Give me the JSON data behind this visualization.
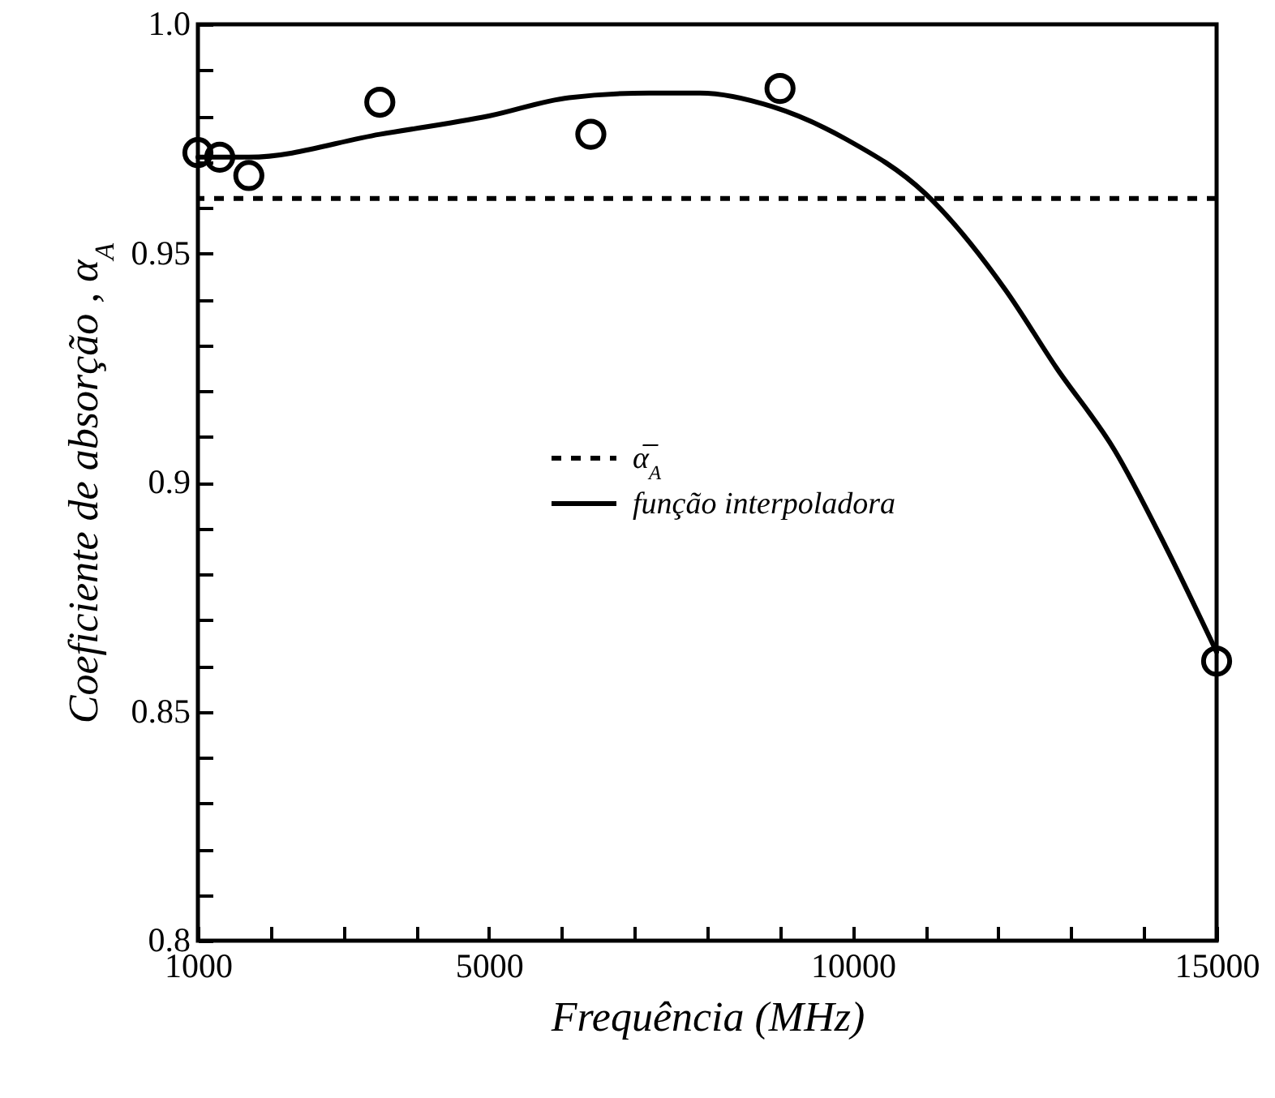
{
  "chart_data": {
    "type": "scatter",
    "xlabel": "Frequência (MHz)",
    "ylabel": "Coeficiente de absorção , α$_{A}$",
    "xlim": [
      1000,
      15000
    ],
    "ylim": [
      0.8,
      1.0
    ],
    "xticks": [
      1000,
      {
        "value": 2000,
        "label": null
      },
      {
        "value": 3000,
        "label": null
      },
      {
        "value": 4000,
        "label": null
      },
      5000,
      {
        "value": 6000,
        "label": null
      },
      {
        "value": 7000,
        "label": null
      },
      {
        "value": 8000,
        "label": null
      },
      {
        "value": 9000,
        "label": null
      },
      10000,
      {
        "value": 11000,
        "label": null
      },
      {
        "value": 12000,
        "label": null
      },
      {
        "value": 13000,
        "label": null
      },
      {
        "value": 14000,
        "label": null
      },
      15000
    ],
    "yticks": [
      0.8,
      {
        "value": 0.81,
        "label": null
      },
      {
        "value": 0.82,
        "label": null
      },
      {
        "value": 0.83,
        "label": null
      },
      {
        "value": 0.84,
        "label": null
      },
      0.85,
      {
        "value": 0.86,
        "label": null
      },
      {
        "value": 0.87,
        "label": null
      },
      {
        "value": 0.88,
        "label": null
      },
      {
        "value": 0.89,
        "label": null
      },
      0.9,
      {
        "value": 0.91,
        "label": null
      },
      {
        "value": 0.92,
        "label": null
      },
      {
        "value": 0.93,
        "label": null
      },
      {
        "value": 0.94,
        "label": null
      },
      0.95,
      {
        "value": 0.96,
        "label": null
      },
      {
        "value": 0.97,
        "label": null
      },
      {
        "value": 0.98,
        "label": null
      },
      {
        "value": 0.99,
        "label": null
      },
      {
        "value": 1.0,
        "label": "1.0"
      }
    ],
    "grid": false,
    "legend": "center",
    "series": [
      {
        "type": "scatter",
        "marker": "circle",
        "color": "#000000",
        "x": [
          1000,
          1300,
          1700,
          3500,
          6400,
          9000,
          15000
        ],
        "values": [
          0.972,
          0.971,
          0.967,
          0.983,
          0.976,
          0.986,
          0.861
        ]
      },
      {
        "type": "line",
        "name": "função interpoladora",
        "color": "#000000",
        "line_style": "solid",
        "marker": "none",
        "x": [
          1000,
          1700,
          3500,
          5000,
          6100,
          7200,
          7900,
          8900,
          9900,
          11000,
          12100,
          12800,
          13600,
          14300,
          15000
        ],
        "values": [
          0.971,
          0.971,
          0.976,
          0.98,
          0.984,
          0.985,
          0.985,
          0.982,
          0.975,
          0.963,
          0.942,
          0.925,
          0.907,
          0.886,
          0.863
        ]
      }
    ],
    "ref_lines": [
      {
        "axis": "y",
        "value": 0.962,
        "label": "α̅$_{A}$",
        "color": "#000000",
        "line_style": "dashed"
      }
    ]
  }
}
